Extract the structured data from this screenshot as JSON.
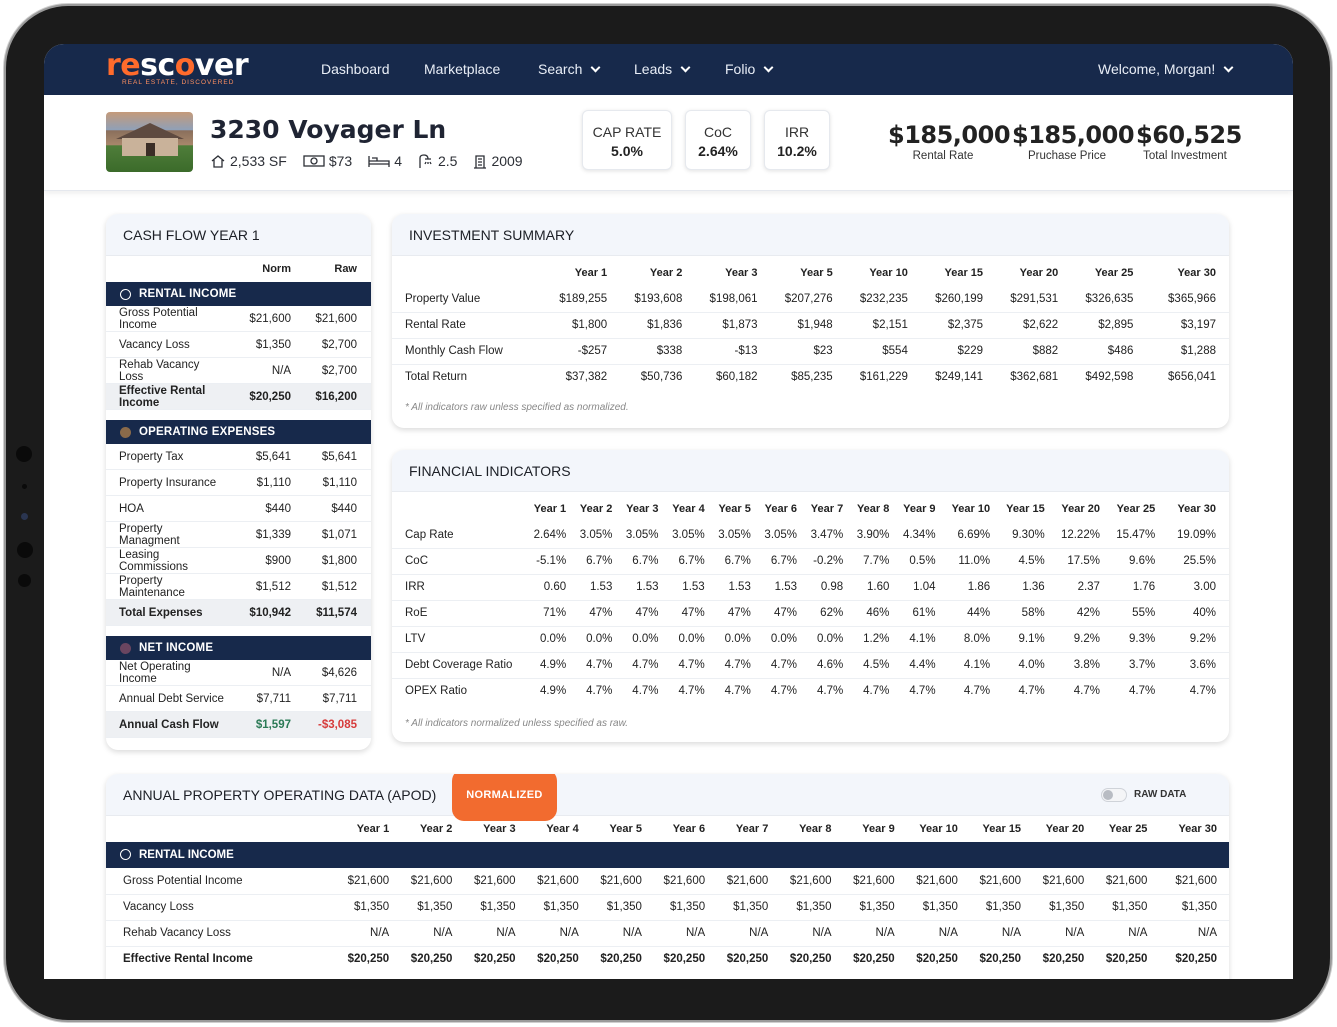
{
  "nav": {
    "logo_re": "re",
    "logo_scover": "sc",
    "logo_o": "o",
    "logo_ver": "ver",
    "logo_tagline": "REAL ESTATE, DISCOVERED",
    "items": [
      "Dashboard",
      "Marketplace",
      "Search",
      "Leads",
      "Folio"
    ],
    "welcome": "Welcome, Morgan!"
  },
  "property": {
    "address": "3230 Voyager Ln",
    "sqft": "2,533 SF",
    "price_per_sf": "$73",
    "beds": "4",
    "baths": "2.5",
    "year_built": "2009"
  },
  "metrics": [
    {
      "label": "CAP RATE",
      "value": "5.0%"
    },
    {
      "label": "CoC",
      "value": "2.64%"
    },
    {
      "label": "IRR",
      "value": "10.2%"
    }
  ],
  "totals": [
    {
      "value": "$185,000",
      "label": "Rental Rate"
    },
    {
      "value": "$185,000",
      "label": "Pruchase Price"
    },
    {
      "value": "$60,525",
      "label": "Total Investment"
    }
  ],
  "cashflow": {
    "title": "CASH FLOW YEAR 1",
    "col_norm": "Norm",
    "col_raw": "Raw",
    "sections": [
      {
        "name": "RENTAL INCOME",
        "dot_color": "ring",
        "rows": [
          {
            "name": "Gross Potential Income",
            "norm": "$21,600",
            "raw": "$21,600"
          },
          {
            "name": "Vacancy Loss",
            "norm": "$1,350",
            "raw": "$2,700"
          },
          {
            "name": "Rehab Vacancy Loss",
            "norm": "N/A",
            "raw": "$2,700"
          }
        ],
        "total": {
          "name": "Effective Rental Income",
          "norm": "$20,250",
          "raw": "$16,200"
        }
      },
      {
        "name": "OPERATING EXPENSES",
        "dot_color": "#8a6a4a",
        "rows": [
          {
            "name": "Property Tax",
            "norm": "$5,641",
            "raw": "$5,641"
          },
          {
            "name": "Property Insurance",
            "norm": "$1,110",
            "raw": "$1,110"
          },
          {
            "name": "HOA",
            "norm": "$440",
            "raw": "$440"
          },
          {
            "name": "Property Managment",
            "norm": "$1,339",
            "raw": "$1,071"
          },
          {
            "name": "Leasing Commissions",
            "norm": "$900",
            "raw": "$1,800"
          },
          {
            "name": "Property Maintenance",
            "norm": "$1,512",
            "raw": "$1,512"
          }
        ],
        "total": {
          "name": "Total Expenses",
          "norm": "$10,942",
          "raw": "$11,574"
        }
      },
      {
        "name": "NET INCOME",
        "dot_color": "#6a4560",
        "rows": [
          {
            "name": "Net Operating Income",
            "norm": "N/A",
            "raw": "$4,626"
          },
          {
            "name": "Annual Debt Service",
            "norm": "$7,711",
            "raw": "$7,711"
          }
        ],
        "total": {
          "name": "Annual Cash Flow",
          "norm": "$1,597",
          "raw": "-$3,085"
        }
      }
    ]
  },
  "investment_summary": {
    "title": "INVESTMENT SUMMARY",
    "years": [
      "Year 1",
      "Year 2",
      "Year 3",
      "Year 5",
      "Year 10",
      "Year 15",
      "Year 20",
      "Year 25",
      "Year 30"
    ],
    "rows": [
      {
        "name": "Property Value",
        "values": [
          "$189,255",
          "$193,608",
          "$198,061",
          "$207,276",
          "$232,235",
          "$260,199",
          "$291,531",
          "$326,635",
          "$365,966"
        ]
      },
      {
        "name": "Rental Rate",
        "values": [
          "$1,800",
          "$1,836",
          "$1,873",
          "$1,948",
          "$2,151",
          "$2,375",
          "$2,622",
          "$2,895",
          "$3,197"
        ]
      },
      {
        "name": "Monthly Cash Flow",
        "values": [
          "-$257",
          "$338",
          "-$13",
          "$23",
          "$554",
          "$229",
          "$882",
          "$486",
          "$1,288"
        ]
      },
      {
        "name": "Total Return",
        "values": [
          "$37,382",
          "$50,736",
          "$60,182",
          "$85,235",
          "$161,229",
          "$249,141",
          "$362,681",
          "$492,598",
          "$656,041"
        ]
      }
    ],
    "note": "* All indicators raw unless specified as normalized."
  },
  "financial_indicators": {
    "title": "FINANCIAL INDICATORS",
    "years": [
      "Year 1",
      "Year 2",
      "Year 3",
      "Year 4",
      "Year 5",
      "Year 6",
      "Year 7",
      "Year 8",
      "Year 9",
      "Year 10",
      "Year 15",
      "Year 20",
      "Year 25",
      "Year 30"
    ],
    "rows": [
      {
        "name": "Cap Rate",
        "values": [
          "2.64%",
          "3.05%",
          "3.05%",
          "3.05%",
          "3.05%",
          "3.05%",
          "3.47%",
          "3.90%",
          "4.34%",
          "6.69%",
          "9.30%",
          "12.22%",
          "15.47%",
          "19.09%"
        ]
      },
      {
        "name": "CoC",
        "values": [
          "-5.1%",
          "6.7%",
          "6.7%",
          "6.7%",
          "6.7%",
          "6.7%",
          "-0.2%",
          "7.7%",
          "0.5%",
          "11.0%",
          "4.5%",
          "17.5%",
          "9.6%",
          "25.5%"
        ]
      },
      {
        "name": "IRR",
        "values": [
          "0.60",
          "1.53",
          "1.53",
          "1.53",
          "1.53",
          "1.53",
          "0.98",
          "1.60",
          "1.04",
          "1.86",
          "1.36",
          "2.37",
          "1.76",
          "3.00"
        ]
      },
      {
        "name": "RoE",
        "values": [
          "71%",
          "47%",
          "47%",
          "47%",
          "47%",
          "47%",
          "62%",
          "46%",
          "61%",
          "44%",
          "58%",
          "42%",
          "55%",
          "40%"
        ]
      },
      {
        "name": "LTV",
        "values": [
          "0.0%",
          "0.0%",
          "0.0%",
          "0.0%",
          "0.0%",
          "0.0%",
          "0.0%",
          "1.2%",
          "4.1%",
          "8.0%",
          "9.1%",
          "9.2%",
          "9.3%",
          "9.2%"
        ]
      },
      {
        "name": "Debt Coverage Ratio",
        "values": [
          "4.9%",
          "4.7%",
          "4.7%",
          "4.7%",
          "4.7%",
          "4.7%",
          "4.6%",
          "4.5%",
          "4.4%",
          "4.1%",
          "4.0%",
          "3.8%",
          "3.7%",
          "3.6%"
        ]
      },
      {
        "name": "OPEX Ratio",
        "values": [
          "4.9%",
          "4.7%",
          "4.7%",
          "4.7%",
          "4.7%",
          "4.7%",
          "4.7%",
          "4.7%",
          "4.7%",
          "4.7%",
          "4.7%",
          "4.7%",
          "4.7%",
          "4.7%"
        ]
      }
    ],
    "note": "* All indicators normalized unless specified as raw."
  },
  "apod": {
    "title": "ANNUAL PROPERTY OPERATING DATA (APOD)",
    "badge": "NORMALIZED",
    "toggle_label": "RAW DATA",
    "years": [
      "Year 1",
      "Year 2",
      "Year 3",
      "Year 4",
      "Year 5",
      "Year 6",
      "Year 7",
      "Year 8",
      "Year 9",
      "Year 10",
      "Year 15",
      "Year 20",
      "Year 25",
      "Year 30"
    ],
    "section": "RENTAL INCOME",
    "rows": [
      {
        "name": "Gross Potential Income",
        "values": [
          "$21,600",
          "$21,600",
          "$21,600",
          "$21,600",
          "$21,600",
          "$21,600",
          "$21,600",
          "$21,600",
          "$21,600",
          "$21,600",
          "$21,600",
          "$21,600",
          "$21,600",
          "$21,600"
        ]
      },
      {
        "name": "Vacancy Loss",
        "values": [
          "$1,350",
          "$1,350",
          "$1,350",
          "$1,350",
          "$1,350",
          "$1,350",
          "$1,350",
          "$1,350",
          "$1,350",
          "$1,350",
          "$1,350",
          "$1,350",
          "$1,350",
          "$1,350"
        ]
      },
      {
        "name": "Rehab Vacancy Loss",
        "values": [
          "N/A",
          "N/A",
          "N/A",
          "N/A",
          "N/A",
          "N/A",
          "N/A",
          "N/A",
          "N/A",
          "N/A",
          "N/A",
          "N/A",
          "N/A",
          "N/A"
        ]
      },
      {
        "name": "Effective Rental Income",
        "values": [
          "$20,250",
          "$20,250",
          "$20,250",
          "$20,250",
          "$20,250",
          "$20,250",
          "$20,250",
          "$20,250",
          "$20,250",
          "$20,250",
          "$20,250",
          "$20,250",
          "$20,250",
          "$20,250"
        ]
      }
    ]
  }
}
